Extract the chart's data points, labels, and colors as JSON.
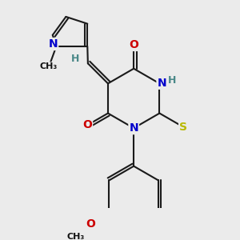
{
  "bg_color": "#ebebeb",
  "bond_color": "#1a1a1a",
  "bond_width": 1.5,
  "dbo": 0.06,
  "atom_colors": {
    "N": "#0000cc",
    "O": "#cc0000",
    "S": "#b8b800",
    "H": "#4a8888"
  },
  "font_size": 10,
  "small_font": 9
}
